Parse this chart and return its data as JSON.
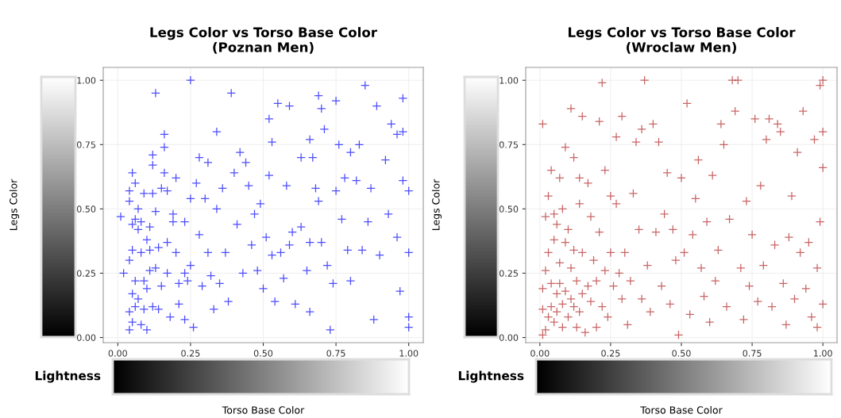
{
  "chart_data": [
    {
      "type": "scatter",
      "title": "Legs Color vs Torso Base Color\n(Poznan Men)",
      "xlabel": "Torso Base Color",
      "ylabel": "Legs Color",
      "annotations": [
        "Lightness"
      ],
      "xlim": [
        -0.05,
        1.05
      ],
      "ylim": [
        -0.02,
        1.05
      ],
      "xticks": [
        {
          "value": 0,
          "label": "0.00"
        },
        {
          "value": 0.25,
          "label": "0.25"
        },
        {
          "value": 0.5,
          "label": "0.50"
        },
        {
          "value": 0.75,
          "label": "0.75"
        },
        {
          "value": 1,
          "label": "1.00"
        }
      ],
      "yticks": [
        {
          "value": 0,
          "label": "0.00"
        },
        {
          "value": 0.25,
          "label": "0.25"
        },
        {
          "value": 0.5,
          "label": "0.50"
        },
        {
          "value": 0.75,
          "label": "0.75"
        },
        {
          "value": 1,
          "label": "1.00"
        }
      ],
      "grid": true,
      "marker": "cross",
      "series": [
        {
          "color": "#0000ff",
          "x": [
            0.01,
            0.02,
            0.04,
            0.04,
            0.04,
            0.04,
            0.04,
            0.05,
            0.05,
            0.05,
            0.05,
            0.05,
            0.06,
            0.06,
            0.06,
            0.06,
            0.07,
            0.07,
            0.07,
            0.08,
            0.08,
            0.08,
            0.09,
            0.09,
            0.09,
            0.1,
            0.1,
            0.1,
            0.11,
            0.11,
            0.11,
            0.12,
            0.12,
            0.12,
            0.12,
            0.13,
            0.13,
            0.13,
            0.14,
            0.14,
            0.15,
            0.15,
            0.16,
            0.16,
            0.16,
            0.17,
            0.17,
            0.17,
            0.18,
            0.19,
            0.19,
            0.2,
            0.2,
            0.21,
            0.21,
            0.23,
            0.23,
            0.23,
            0.24,
            0.25,
            0.25,
            0.25,
            0.26,
            0.27,
            0.28,
            0.28,
            0.29,
            0.3,
            0.31,
            0.31,
            0.32,
            0.33,
            0.34,
            0.34,
            0.35,
            0.36,
            0.37,
            0.38,
            0.39,
            0.4,
            0.41,
            0.42,
            0.43,
            0.44,
            0.45,
            0.46,
            0.47,
            0.48,
            0.49,
            0.5,
            0.51,
            0.52,
            0.52,
            0.53,
            0.53,
            0.54,
            0.55,
            0.56,
            0.57,
            0.58,
            0.59,
            0.59,
            0.6,
            0.61,
            0.63,
            0.63,
            0.65,
            0.66,
            0.66,
            0.67,
            0.68,
            0.69,
            0.69,
            0.7,
            0.7,
            0.71,
            0.72,
            0.74,
            0.75,
            0.75,
            0.76,
            0.77,
            0.78,
            0.79,
            0.8,
            0.8,
            0.82,
            0.83,
            0.84,
            0.85,
            0.86,
            0.87,
            0.89,
            0.9,
            0.92,
            0.94,
            0.93,
            0.96,
            0.96,
            0.97,
            0.98,
            0.98,
            0.98,
            1.0,
            1.0,
            1.0,
            1.0,
            0.88,
            0.66,
            0.73
          ],
          "values": [
            0.47,
            0.25,
            0.57,
            0.53,
            0.3,
            0.1,
            0.03,
            0.64,
            0.44,
            0.34,
            0.17,
            0.06,
            0.6,
            0.46,
            0.22,
            0.12,
            0.5,
            0.42,
            0.15,
            0.45,
            0.33,
            0.05,
            0.56,
            0.22,
            0.11,
            0.38,
            0.19,
            0.03,
            0.43,
            0.34,
            0.26,
            0.56,
            0.71,
            0.67,
            0.12,
            0.95,
            0.49,
            0.27,
            0.35,
            0.11,
            0.2,
            0.58,
            0.79,
            0.74,
            0.64,
            0.37,
            0.25,
            0.57,
            0.08,
            0.48,
            0.45,
            0.62,
            0.33,
            0.21,
            0.13,
            0.45,
            0.25,
            0.07,
            0.22,
            1.0,
            0.54,
            0.28,
            0.04,
            0.6,
            0.7,
            0.4,
            0.2,
            0.54,
            0.68,
            0.33,
            0.24,
            0.11,
            0.8,
            0.5,
            0.21,
            0.58,
            0.33,
            0.14,
            0.95,
            0.64,
            0.44,
            0.72,
            0.25,
            0.68,
            0.59,
            0.36,
            0.48,
            0.26,
            0.52,
            0.19,
            0.39,
            0.85,
            0.63,
            0.76,
            0.32,
            0.14,
            0.91,
            0.33,
            0.23,
            0.59,
            0.9,
            0.36,
            0.41,
            0.13,
            0.43,
            0.7,
            0.26,
            0.77,
            0.37,
            0.7,
            0.58,
            0.94,
            0.53,
            0.89,
            0.37,
            0.81,
            0.28,
            0.21,
            0.92,
            0.57,
            0.75,
            0.46,
            0.62,
            0.34,
            0.22,
            0.72,
            0.61,
            0.75,
            0.34,
            0.98,
            0.45,
            0.58,
            0.9,
            0.32,
            0.69,
            0.83,
            0.48,
            0.79,
            0.39,
            0.18,
            0.93,
            0.8,
            0.61,
            0.57,
            0.33,
            0.08,
            0.04,
            0.07,
            0.1,
            0.03
          ]
        }
      ]
    },
    {
      "type": "scatter",
      "title": "Legs Color vs Torso Base Color\n(Wroclaw Men)",
      "xlabel": "Torso Base Color",
      "ylabel": "Legs Color",
      "annotations": [
        "Lightness"
      ],
      "xlim": [
        -0.05,
        1.05
      ],
      "ylim": [
        -0.02,
        1.05
      ],
      "xticks": [
        {
          "value": 0,
          "label": "0.00"
        },
        {
          "value": 0.25,
          "label": "0.25"
        },
        {
          "value": 0.5,
          "label": "0.50"
        },
        {
          "value": 0.75,
          "label": "0.75"
        },
        {
          "value": 1,
          "label": "1.00"
        }
      ],
      "yticks": [
        {
          "value": 0,
          "label": "0.00"
        },
        {
          "value": 0.25,
          "label": "0.25"
        },
        {
          "value": 0.5,
          "label": "0.50"
        },
        {
          "value": 0.75,
          "label": "0.75"
        },
        {
          "value": 1,
          "label": "1.00"
        }
      ],
      "grid": true,
      "marker": "cross",
      "series": [
        {
          "color": "#b22222",
          "x": [
            0.01,
            0.01,
            0.01,
            0.01,
            0.02,
            0.02,
            0.02,
            0.03,
            0.03,
            0.03,
            0.04,
            0.04,
            0.04,
            0.05,
            0.05,
            0.05,
            0.06,
            0.06,
            0.06,
            0.07,
            0.07,
            0.07,
            0.08,
            0.08,
            0.08,
            0.09,
            0.09,
            0.09,
            0.1,
            0.1,
            0.11,
            0.11,
            0.11,
            0.12,
            0.12,
            0.12,
            0.13,
            0.13,
            0.14,
            0.14,
            0.14,
            0.15,
            0.15,
            0.15,
            0.16,
            0.17,
            0.17,
            0.18,
            0.18,
            0.19,
            0.2,
            0.2,
            0.21,
            0.21,
            0.22,
            0.22,
            0.23,
            0.23,
            0.24,
            0.25,
            0.25,
            0.26,
            0.27,
            0.27,
            0.28,
            0.29,
            0.29,
            0.3,
            0.31,
            0.32,
            0.33,
            0.34,
            0.35,
            0.36,
            0.36,
            0.37,
            0.38,
            0.39,
            0.4,
            0.41,
            0.42,
            0.43,
            0.44,
            0.45,
            0.46,
            0.47,
            0.48,
            0.49,
            0.5,
            0.51,
            0.52,
            0.53,
            0.54,
            0.55,
            0.56,
            0.57,
            0.58,
            0.59,
            0.6,
            0.61,
            0.62,
            0.63,
            0.64,
            0.65,
            0.66,
            0.67,
            0.68,
            0.69,
            0.7,
            0.71,
            0.72,
            0.73,
            0.74,
            0.75,
            0.76,
            0.77,
            0.78,
            0.79,
            0.8,
            0.81,
            0.82,
            0.83,
            0.84,
            0.85,
            0.86,
            0.87,
            0.88,
            0.89,
            0.9,
            0.91,
            0.92,
            0.93,
            0.94,
            0.95,
            0.96,
            0.97,
            0.98,
            0.98,
            0.99,
            0.99,
            1.0,
            1.0,
            1.0,
            1.0
          ],
          "values": [
            0.83,
            0.19,
            0.11,
            0.01,
            0.47,
            0.26,
            0.03,
            0.55,
            0.33,
            0.08,
            0.65,
            0.21,
            0.12,
            0.48,
            0.38,
            0.06,
            0.44,
            0.17,
            0.1,
            0.62,
            0.29,
            0.21,
            0.5,
            0.13,
            0.04,
            0.74,
            0.37,
            0.18,
            0.08,
            0.42,
            0.89,
            0.27,
            0.15,
            0.7,
            0.34,
            0.12,
            0.04,
            0.22,
            0.62,
            0.52,
            0.1,
            0.86,
            0.33,
            0.17,
            0.02,
            0.6,
            0.2,
            0.47,
            0.14,
            0.3,
            0.22,
            0.04,
            0.84,
            0.41,
            0.99,
            0.12,
            0.65,
            0.26,
            0.08,
            0.55,
            0.33,
            0.2,
            0.78,
            0.52,
            0.25,
            0.86,
            0.15,
            0.33,
            0.05,
            0.22,
            0.56,
            0.76,
            0.42,
            0.81,
            0.15,
            1.0,
            0.28,
            0.1,
            0.83,
            0.41,
            0.76,
            0.2,
            0.48,
            0.64,
            0.13,
            0.42,
            0.3,
            0.01,
            0.62,
            0.33,
            0.91,
            0.09,
            0.4,
            0.54,
            0.69,
            0.27,
            0.16,
            0.45,
            0.06,
            0.63,
            0.22,
            0.34,
            0.83,
            0.75,
            0.12,
            0.46,
            1.0,
            0.88,
            1.0,
            0.27,
            0.07,
            0.53,
            0.2,
            0.4,
            0.85,
            0.14,
            0.59,
            0.28,
            0.77,
            0.85,
            0.12,
            0.36,
            0.83,
            0.8,
            0.21,
            0.05,
            0.39,
            0.55,
            0.15,
            0.72,
            0.33,
            0.88,
            0.19,
            0.37,
            0.08,
            0.77,
            0.27,
            0.04,
            0.98,
            0.45,
            1.0,
            0.8,
            0.66,
            0.13
          ]
        }
      ]
    }
  ]
}
